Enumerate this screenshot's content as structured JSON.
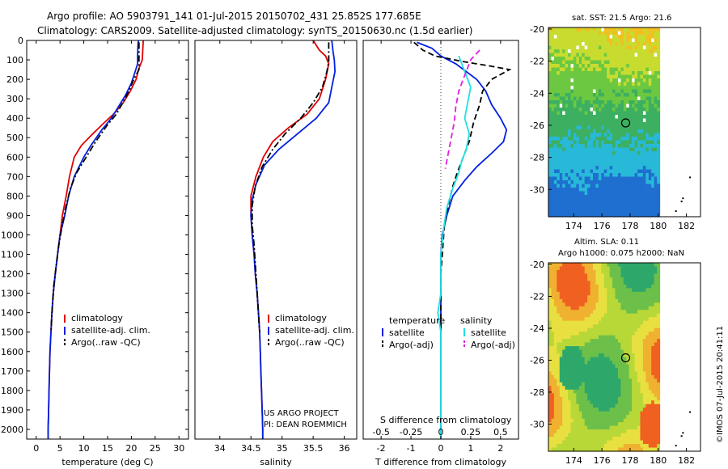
{
  "title_lines": [
    "Argo profile: AO 5903791_141 01-Jul-2015 20150702_431 25.852S 177.685E",
    "Climatology: CARS2009. Satellite-adjusted climatology: synTS_20150630.nc (1.5d earlier)"
  ],
  "right_top_title": "sat. SST: 21.5 Argo: 21.6",
  "right_bottom_title": [
    "Altim. SLA: 0.11",
    "Argo h1000: 0.075 h2000: NaN"
  ],
  "project_lines": [
    "US ARGO PROJECT",
    "PI: DEAN ROEMMICH"
  ],
  "watermark": "©IMOS 07-Jul-2015 20:41:11",
  "colors": {
    "climatology": "#e00000",
    "satellite": "#0020e0",
    "argo": "#000000",
    "sal_sat": "#20e0e0",
    "sal_argo": "#e020e0"
  },
  "chart_data": [
    {
      "type": "line",
      "xlabel": "temperature (deg C)",
      "ylabel": "",
      "xlim": [
        -2,
        32
      ],
      "ylim": [
        2050,
        0
      ],
      "xticks": [
        0,
        5,
        10,
        15,
        20,
        25,
        30
      ],
      "yticks": [
        0,
        100,
        200,
        300,
        400,
        500,
        600,
        700,
        800,
        900,
        1000,
        1100,
        1200,
        1300,
        1400,
        1500,
        1600,
        1700,
        1800,
        1900,
        2000
      ],
      "legend": [
        "climatology",
        "satellite-adj. clim.",
        "Argo(..raw -QC)"
      ],
      "legend_placement": "lower-center",
      "series": [
        {
          "name": "climatology",
          "style": "solid",
          "color": "#e00000",
          "points": [
            [
              22.5,
              0
            ],
            [
              22.4,
              50
            ],
            [
              22.3,
              100
            ],
            [
              21.5,
              150
            ],
            [
              21,
              200
            ],
            [
              19.8,
              260
            ],
            [
              18.3,
              320
            ],
            [
              16.2,
              380
            ],
            [
              14,
              430
            ],
            [
              11.5,
              490
            ],
            [
              9.5,
              540
            ],
            [
              8,
              600
            ],
            [
              7,
              700
            ],
            [
              6.3,
              800
            ],
            [
              5.5,
              900
            ],
            [
              5,
              1000
            ],
            [
              4.5,
              1100
            ],
            [
              4,
              1200
            ],
            [
              3.6,
              1300
            ],
            [
              3.3,
              1400
            ],
            [
              3.1,
              1500
            ],
            [
              2.9,
              1600
            ],
            [
              2.8,
              1700
            ],
            [
              2.7,
              1800
            ],
            [
              2.6,
              1900
            ],
            [
              2.5,
              2000
            ],
            [
              2.5,
              2050
            ]
          ]
        },
        {
          "name": "satellite-adj. clim.",
          "style": "solid",
          "color": "#0020e0",
          "points": [
            [
              21.5,
              0
            ],
            [
              21.4,
              20
            ],
            [
              21.3,
              80
            ],
            [
              21.3,
              120
            ],
            [
              20.8,
              160
            ],
            [
              20,
              220
            ],
            [
              18.8,
              280
            ],
            [
              17.3,
              340
            ],
            [
              15.8,
              400
            ],
            [
              13.8,
              460
            ],
            [
              11.5,
              540
            ],
            [
              10,
              600
            ],
            [
              8,
              700
            ],
            [
              6.8,
              800
            ],
            [
              6,
              900
            ],
            [
              5,
              1000
            ],
            [
              4.5,
              1100
            ],
            [
              4,
              1200
            ],
            [
              3.6,
              1300
            ],
            [
              3.3,
              1400
            ],
            [
              3.1,
              1500
            ],
            [
              2.9,
              1600
            ],
            [
              2.8,
              1700
            ],
            [
              2.7,
              1800
            ],
            [
              2.6,
              1900
            ],
            [
              2.5,
              2000
            ],
            [
              2.5,
              2050
            ]
          ]
        },
        {
          "name": "Argo(..raw -QC)",
          "style": "dashdot",
          "color": "#000000",
          "points": [
            [
              21.6,
              10
            ],
            [
              21.6,
              40
            ],
            [
              21.6,
              80
            ],
            [
              21.6,
              120
            ],
            [
              21.6,
              150
            ],
            [
              20.5,
              200
            ],
            [
              19.5,
              260
            ],
            [
              18.2,
              320
            ],
            [
              16.8,
              380
            ],
            [
              14.8,
              440
            ],
            [
              12.5,
              520
            ],
            [
              10.5,
              600
            ],
            [
              8.5,
              680
            ],
            [
              7.2,
              760
            ],
            [
              6.2,
              860
            ],
            [
              5.4,
              960
            ],
            [
              4.7,
              1060
            ],
            [
              4.2,
              1160
            ],
            [
              3.7,
              1260
            ],
            [
              3.4,
              1360
            ],
            [
              3.2,
              1450
            ],
            [
              3.1,
              1500
            ]
          ]
        }
      ]
    },
    {
      "type": "line",
      "xlabel": "salinity",
      "ylabel": "",
      "xlim": [
        33.6,
        36.2
      ],
      "ylim": [
        2050,
        0
      ],
      "xticks": [
        34,
        34.5,
        35,
        35.5,
        36
      ],
      "legend": [
        "climatology",
        "satellite-adj. clim.",
        "Argo(..raw -QC)"
      ],
      "legend_placement": "lower-right",
      "series": [
        {
          "name": "climatology",
          "style": "solid",
          "color": "#e00000",
          "points": [
            [
              35.5,
              0
            ],
            [
              35.6,
              50
            ],
            [
              35.7,
              80
            ],
            [
              35.75,
              120
            ],
            [
              35.7,
              200
            ],
            [
              35.6,
              300
            ],
            [
              35.4,
              380
            ],
            [
              35.1,
              450
            ],
            [
              34.85,
              520
            ],
            [
              34.7,
              600
            ],
            [
              34.58,
              700
            ],
            [
              34.5,
              800
            ],
            [
              34.5,
              900
            ],
            [
              34.52,
              1000
            ],
            [
              34.55,
              1100
            ],
            [
              34.57,
              1200
            ],
            [
              34.6,
              1300
            ],
            [
              34.62,
              1400
            ],
            [
              34.64,
              1500
            ],
            [
              34.65,
              1600
            ],
            [
              34.66,
              1700
            ],
            [
              34.67,
              1800
            ],
            [
              34.68,
              1900
            ],
            [
              34.69,
              2000
            ],
            [
              34.69,
              2050
            ]
          ]
        },
        {
          "name": "satellite-adj. clim.",
          "style": "solid",
          "color": "#0020e0",
          "points": [
            [
              35.8,
              0
            ],
            [
              35.82,
              60
            ],
            [
              35.84,
              100
            ],
            [
              35.85,
              160
            ],
            [
              35.8,
              240
            ],
            [
              35.75,
              320
            ],
            [
              35.55,
              400
            ],
            [
              35.25,
              480
            ],
            [
              34.95,
              560
            ],
            [
              34.72,
              640
            ],
            [
              34.58,
              740
            ],
            [
              34.52,
              820
            ],
            [
              34.5,
              900
            ],
            [
              34.52,
              1000
            ],
            [
              34.55,
              1100
            ],
            [
              34.57,
              1200
            ],
            [
              34.6,
              1300
            ],
            [
              34.62,
              1400
            ],
            [
              34.64,
              1500
            ],
            [
              34.65,
              1600
            ],
            [
              34.66,
              1700
            ],
            [
              34.67,
              1800
            ],
            [
              34.68,
              1900
            ],
            [
              34.69,
              2000
            ],
            [
              34.69,
              2050
            ]
          ]
        },
        {
          "name": "Argo(..raw -QC)",
          "style": "dashdot",
          "color": "#000000",
          "points": [
            [
              35.75,
              10
            ],
            [
              35.75,
              60
            ],
            [
              35.75,
              110
            ],
            [
              35.72,
              160
            ],
            [
              35.65,
              240
            ],
            [
              35.5,
              320
            ],
            [
              35.3,
              400
            ],
            [
              35.05,
              480
            ],
            [
              34.85,
              560
            ],
            [
              34.68,
              650
            ],
            [
              34.57,
              750
            ],
            [
              34.52,
              850
            ],
            [
              34.52,
              950
            ],
            [
              34.55,
              1050
            ],
            [
              34.57,
              1150
            ],
            [
              34.59,
              1250
            ],
            [
              34.61,
              1350
            ],
            [
              34.63,
              1450
            ],
            [
              34.64,
              1500
            ]
          ]
        }
      ]
    },
    {
      "type": "line",
      "xlabel": "T difference from climatology",
      "xlabel_top": "S difference from climatology",
      "xlim": [
        -2.6,
        2.6
      ],
      "ylim": [
        2050,
        0
      ],
      "xticks": [
        -2,
        -1,
        0,
        1,
        2
      ],
      "xtick_labels_S": [
        "-0.5",
        "-0.25",
        "0",
        "0.25",
        "0.5"
      ],
      "legend_groups": [
        "temperature",
        "salinity"
      ],
      "legend_temperature": [
        "satellite",
        "Argo(-adj)"
      ],
      "legend_salinity": [
        "satellite",
        "Argo(-adj)"
      ],
      "legend_placement": "lower-center",
      "series": [
        {
          "name": "temperature satellite",
          "style": "solid",
          "color": "#0020e0",
          "points": [
            [
              -0.8,
              10
            ],
            [
              -0.3,
              40
            ],
            [
              0,
              80
            ],
            [
              0.5,
              120
            ],
            [
              1.2,
              200
            ],
            [
              1.5,
              260
            ],
            [
              1.7,
              330
            ],
            [
              2,
              400
            ],
            [
              2.2,
              460
            ],
            [
              2.1,
              520
            ],
            [
              1.7,
              580
            ],
            [
              1.2,
              650
            ],
            [
              0.8,
              720
            ],
            [
              0.4,
              800
            ],
            [
              0.2,
              900
            ],
            [
              0.05,
              1000
            ],
            [
              0,
              1100
            ],
            [
              0,
              2050
            ]
          ]
        },
        {
          "name": "temperature Argo(-adj)",
          "style": "dashed",
          "color": "#000000",
          "points": [
            [
              -0.9,
              10
            ],
            [
              -0.6,
              50
            ],
            [
              -0.2,
              80
            ],
            [
              0.8,
              110
            ],
            [
              1.6,
              130
            ],
            [
              2.3,
              150
            ],
            [
              1.7,
              200
            ],
            [
              1.4,
              260
            ],
            [
              1.3,
              330
            ],
            [
              1.1,
              420
            ],
            [
              0.95,
              520
            ],
            [
              0.75,
              600
            ],
            [
              0.55,
              680
            ],
            [
              0.4,
              750
            ],
            [
              0.25,
              850
            ],
            [
              0.12,
              950
            ],
            [
              0.05,
              1100
            ],
            [
              0,
              1200
            ],
            [
              0,
              1500
            ]
          ]
        },
        {
          "name": "salinity satellite",
          "style": "solid",
          "color": "#20e0e0",
          "points": [
            [
              0.6,
              80
            ],
            [
              0.8,
              160
            ],
            [
              1,
              240
            ],
            [
              0.9,
              320
            ],
            [
              0.8,
              400
            ],
            [
              0.95,
              480
            ],
            [
              0.85,
              560
            ],
            [
              0.7,
              620
            ],
            [
              0.6,
              680
            ],
            [
              0.4,
              760
            ],
            [
              0.2,
              860
            ],
            [
              0.1,
              960
            ],
            [
              0,
              1100
            ],
            [
              0,
              1300
            ],
            [
              -0.1,
              1400
            ],
            [
              0,
              1500
            ],
            [
              0,
              2050
            ]
          ]
        },
        {
          "name": "salinity Argo(-adj)",
          "style": "dashed",
          "color": "#e020e0",
          "points": [
            [
              1.3,
              50
            ],
            [
              1,
              100
            ],
            [
              0.8,
              180
            ],
            [
              0.6,
              260
            ],
            [
              0.5,
              340
            ],
            [
              0.45,
              420
            ],
            [
              0.35,
              500
            ],
            [
              0.25,
              580
            ],
            [
              0.15,
              660
            ]
          ]
        }
      ]
    }
  ],
  "maps": [
    {
      "name": "SST",
      "xticks": [
        "174",
        "176",
        "178",
        "180",
        "182"
      ],
      "yticks": [
        "-20",
        "-22",
        "-24",
        "-26",
        "-28",
        "-30"
      ],
      "xlim": [
        172.2,
        183
      ],
      "ylim": [
        -31.7,
        -19.9
      ],
      "marker_lon": 177.685,
      "marker_lat": -25.852
    },
    {
      "name": "SLA",
      "xticks": [
        "174",
        "176",
        "178",
        "180",
        "182"
      ],
      "yticks": [
        "-20",
        "-22",
        "-24",
        "-26",
        "-28",
        "-30"
      ],
      "xlim": [
        172.2,
        183
      ],
      "ylim": [
        -31.7,
        -19.9
      ],
      "marker_lon": 177.685,
      "marker_lat": -25.852
    }
  ]
}
